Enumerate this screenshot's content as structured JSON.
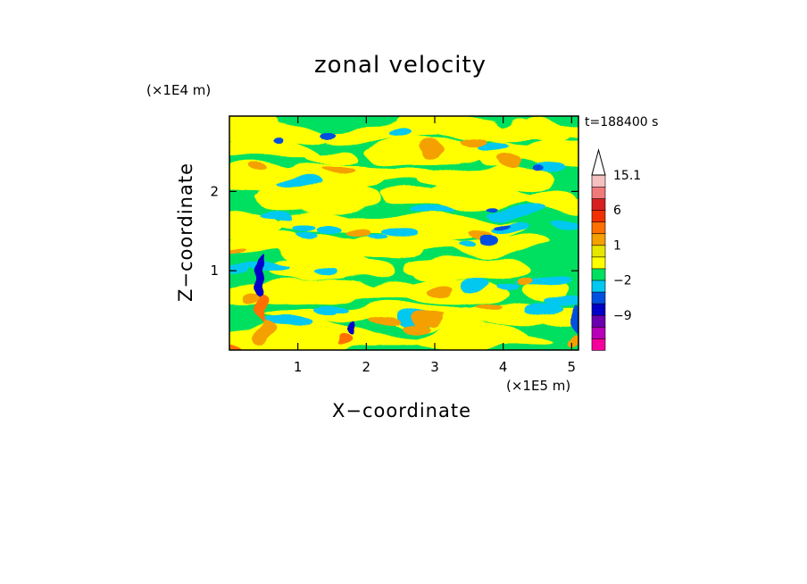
{
  "chart_data": {
    "type": "heatmap",
    "title": "zonal velocity",
    "xlabel": "X−coordinate",
    "ylabel": "Z−coordinate",
    "x_unit_label": "(×1E5 m)",
    "y_unit_label": "(×1E4 m)",
    "time_label": "t=188400 s",
    "xlim": [
      0,
      5.1
    ],
    "ylim": [
      0,
      2.95
    ],
    "x_ticks": [
      1,
      2,
      3,
      4,
      5
    ],
    "x_tick_labels": [
      "1",
      "2",
      "3",
      "4",
      "5"
    ],
    "y_ticks": [
      1,
      2
    ],
    "y_tick_labels": [
      "1",
      "2"
    ],
    "colorbar": {
      "levels": [
        -15,
        -12,
        -9,
        -6,
        -3,
        -2,
        -1,
        0,
        1,
        2,
        3,
        6,
        9,
        12,
        15.1
      ],
      "tick_labels": [
        {
          "value": 15.1,
          "text": "15.1"
        },
        {
          "value": 6,
          "text": "6"
        },
        {
          "value": 1,
          "text": "1"
        },
        {
          "value": -2,
          "text": "−2"
        },
        {
          "value": -9,
          "text": "−9"
        }
      ],
      "colors": [
        "#f5009a",
        "#b800b8",
        "#6a00b0",
        "#0000c8",
        "#0050e0",
        "#00c8f0",
        "#00e060",
        "#ffff00",
        "#e6e600",
        "#f4a000",
        "#ff7000",
        "#f03000",
        "#d82020",
        "#f07a7a",
        "#f5c0c0"
      ],
      "extend_top": true
    },
    "field_summary": "Layered zonal velocity in x-z plane: alternating yellow (~0 to 1) and green (~-1 to 0) bands with cyan (~-2 to -3) patches; orange (~2 to 3) patches; strong blue/red features near x=0.4 and x=1.8 at low z and near x=5.1 right edge."
  }
}
